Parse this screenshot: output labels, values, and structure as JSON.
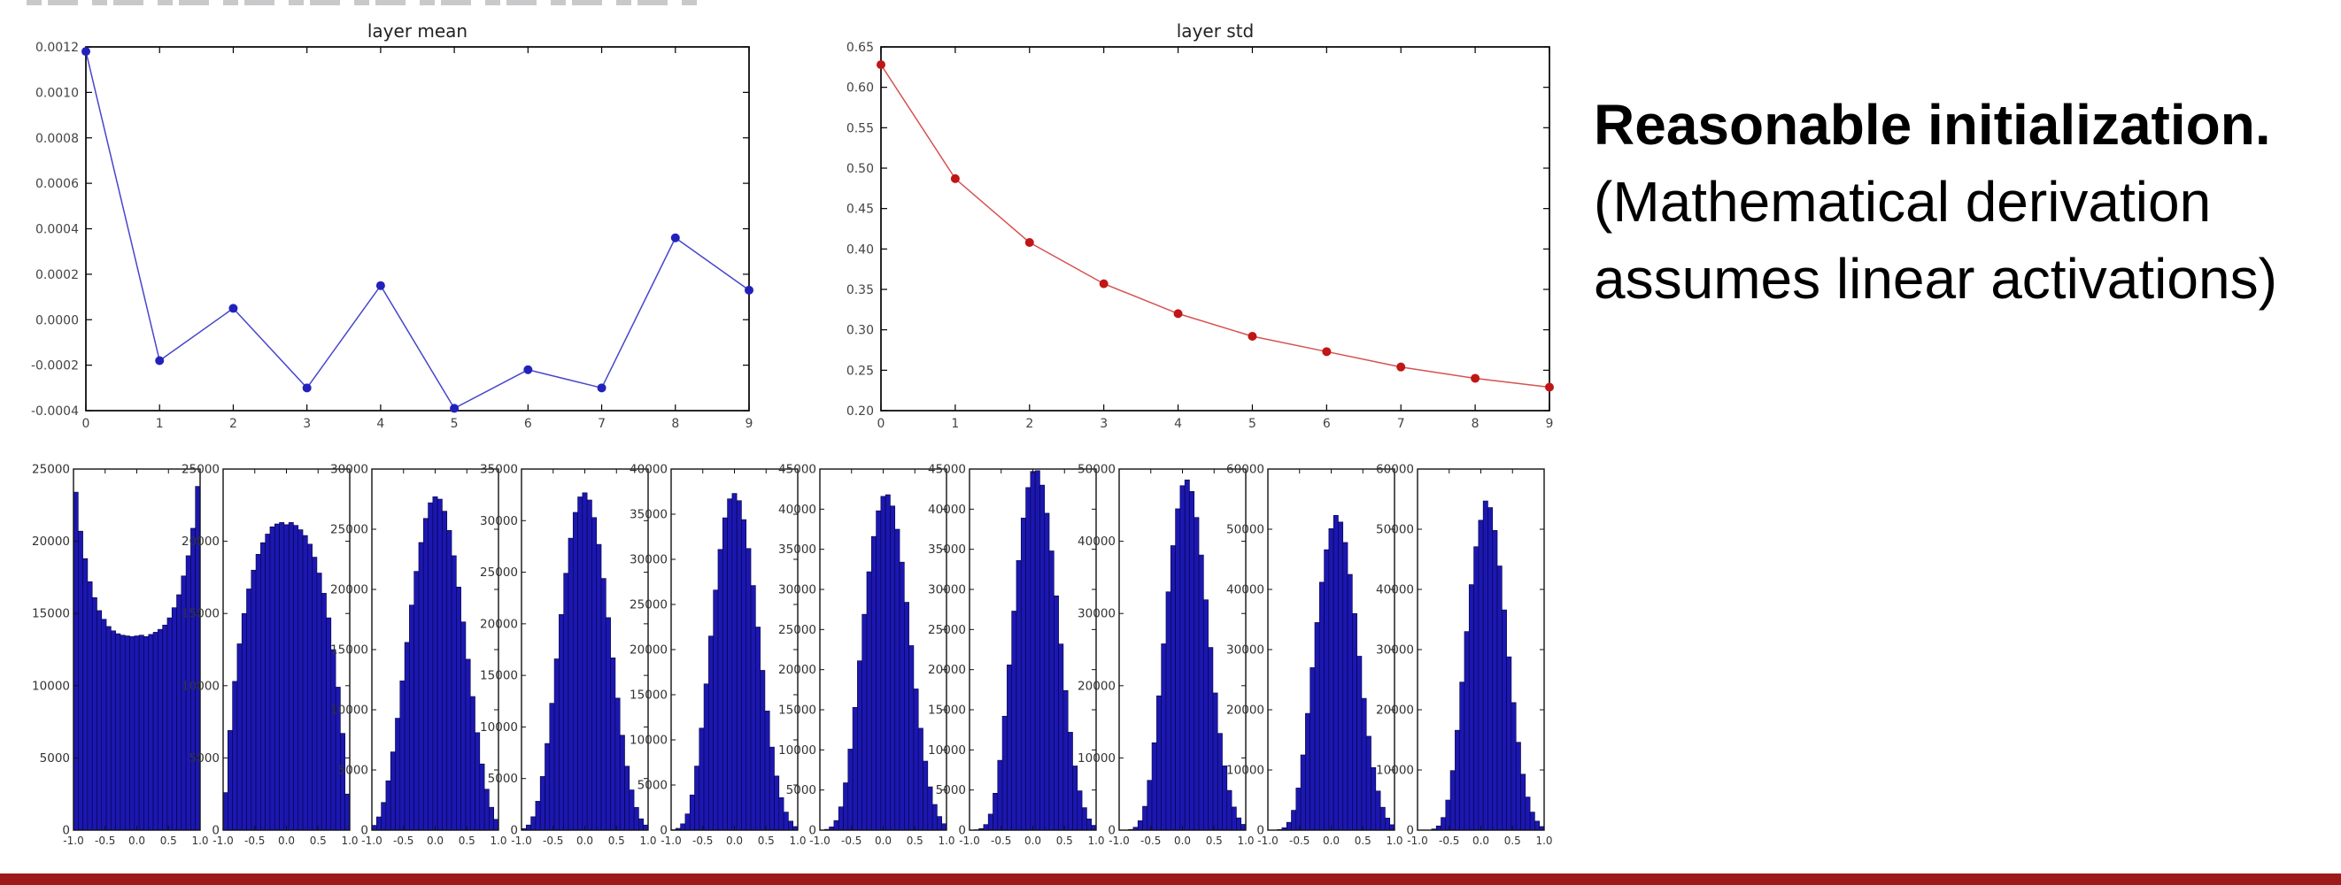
{
  "caption": {
    "line1": "Reasonable initialization.",
    "line2": "(Mathematical derivation",
    "line3": "assumes linear activations)"
  },
  "accent_bar_color": "#9e1a1a",
  "chart_data": [
    {
      "id": "layer-mean",
      "type": "line",
      "title": "layer mean",
      "x": [
        0,
        1,
        2,
        3,
        4,
        5,
        6,
        7,
        8,
        9
      ],
      "values": [
        0.00118,
        -0.00018,
        5e-05,
        -0.0003,
        0.00015,
        -0.00039,
        -0.00022,
        -0.0003,
        0.00036,
        0.00013
      ],
      "xlim": [
        0,
        9
      ],
      "ylim": [
        -0.0004,
        0.0012
      ],
      "xticks": [
        0,
        1,
        2,
        3,
        4,
        5,
        6,
        7,
        8,
        9
      ],
      "xtick_labels": [
        "0",
        "1",
        "2",
        "3",
        "4",
        "5",
        "6",
        "7",
        "8",
        "9"
      ],
      "yticks": [
        0.0012,
        0.001,
        0.0008,
        0.0006,
        0.0004,
        0.0002,
        0.0,
        -0.0002,
        -0.0004
      ],
      "ytick_labels": [
        "0.0012",
        "0.0010",
        "0.0008",
        "0.0006",
        "0.0004",
        "0.0002",
        "0.0000",
        "-0.0002",
        "-0.0004"
      ],
      "grid": false,
      "legend": null,
      "line_color": "#4646cc",
      "marker_color": "#2222bb"
    },
    {
      "id": "layer-std",
      "type": "line",
      "title": "layer std",
      "x": [
        0,
        1,
        2,
        3,
        4,
        5,
        6,
        7,
        8,
        9
      ],
      "values": [
        0.628,
        0.487,
        0.408,
        0.357,
        0.32,
        0.292,
        0.273,
        0.254,
        0.24,
        0.229
      ],
      "xlim": [
        0,
        9
      ],
      "ylim": [
        0.2,
        0.65
      ],
      "xticks": [
        0,
        1,
        2,
        3,
        4,
        5,
        6,
        7,
        8,
        9
      ],
      "xtick_labels": [
        "0",
        "1",
        "2",
        "3",
        "4",
        "5",
        "6",
        "7",
        "8",
        "9"
      ],
      "yticks": [
        0.65,
        0.6,
        0.55,
        0.5,
        0.45,
        0.4,
        0.35,
        0.3,
        0.25,
        0.2
      ],
      "ytick_labels": [
        "0.65",
        "0.60",
        "0.55",
        "0.50",
        "0.45",
        "0.40",
        "0.35",
        "0.30",
        "0.25",
        "0.20"
      ],
      "grid": false,
      "legend": null,
      "line_color": "#d65151",
      "marker_color": "#c01616"
    },
    {
      "id": "activation-histograms",
      "type": "bar",
      "note": "per-layer tanh activation distributions, layers 1-10",
      "xlim": [
        -1,
        1
      ],
      "xticks": [
        -1,
        -0.5,
        0,
        0.5,
        1
      ],
      "xtick_labels": [
        "-1.0",
        "-0.5",
        "0.0",
        "0.5",
        "1.0"
      ],
      "bar_color": "#1c17b0",
      "bar_edge_color": "#03033f",
      "panels": [
        {
          "layer": 1,
          "ymax": 25000,
          "ytick_step": 5000,
          "values": [
            23400,
            20700,
            18800,
            17200,
            16100,
            15200,
            14600,
            14100,
            13800,
            13600,
            13500,
            13450,
            13400,
            13450,
            13500,
            13400,
            13550,
            13700,
            13900,
            14200,
            14700,
            15400,
            16300,
            17600,
            19000,
            20900,
            23800
          ]
        },
        {
          "layer": 2,
          "ymax": 25000,
          "ytick_step": 5000,
          "values": [
            2600,
            6900,
            10300,
            12900,
            15000,
            16700,
            18000,
            19100,
            19900,
            20500,
            21000,
            21200,
            21300,
            21150,
            21300,
            21100,
            20800,
            20400,
            19800,
            18900,
            17800,
            16400,
            14700,
            12500,
            9900,
            6700,
            2500
          ]
        },
        {
          "layer": 3,
          "ymax": 30000,
          "ytick_step": 5000,
          "values": [
            400,
            1100,
            2300,
            4100,
            6500,
            9300,
            12400,
            15600,
            18700,
            21500,
            23900,
            25900,
            27200,
            27700,
            27500,
            26500,
            24900,
            22800,
            20200,
            17300,
            14200,
            11100,
            8100,
            5500,
            3400,
            1900,
            900
          ]
        },
        {
          "layer": 4,
          "ymax": 35000,
          "ytick_step": 5000,
          "values": [
            150,
            500,
            1300,
            2800,
            5200,
            8400,
            12300,
            16600,
            20900,
            24900,
            28300,
            30800,
            32300,
            32700,
            32000,
            30300,
            27700,
            24400,
            20600,
            16700,
            12800,
            9200,
            6200,
            3900,
            2200,
            1100,
            500
          ]
        },
        {
          "layer": 5,
          "ymax": 40000,
          "ytick_step": 5000,
          "values": [
            50,
            200,
            700,
            1800,
            3900,
            7100,
            11300,
            16200,
            21500,
            26600,
            31100,
            34600,
            36700,
            37300,
            36500,
            34400,
            31200,
            27100,
            22500,
            17700,
            13200,
            9200,
            6000,
            3600,
            2000,
            1000,
            400
          ]
        },
        {
          "layer": 6,
          "ymax": 45000,
          "ytick_step": 5000,
          "values": [
            0,
            100,
            400,
            1200,
            2900,
            5900,
            10100,
            15300,
            21100,
            26900,
            32200,
            36600,
            39800,
            41600,
            41800,
            40400,
            37500,
            33400,
            28400,
            23000,
            17600,
            12700,
            8600,
            5400,
            3200,
            1700,
            800
          ]
        },
        {
          "layer": 7,
          "ymax": 45000,
          "ytick_step": 5000,
          "values": [
            0,
            50,
            200,
            700,
            2000,
            4600,
            8700,
            14200,
            20600,
            27300,
            33600,
            38900,
            42700,
            44700,
            44800,
            43000,
            39500,
            34800,
            29200,
            23200,
            17400,
            12200,
            8000,
            4900,
            2800,
            1400,
            600
          ]
        },
        {
          "layer": 8,
          "ymax": 50000,
          "ytick_step": 10000,
          "values": [
            0,
            0,
            100,
            400,
            1300,
            3300,
            6900,
            12100,
            18600,
            25800,
            33000,
            39400,
            44500,
            47700,
            48500,
            46900,
            43300,
            38100,
            31900,
            25300,
            19000,
            13400,
            8900,
            5500,
            3200,
            1700,
            800
          ]
        },
        {
          "layer": 9,
          "ymax": 60000,
          "ytick_step": 10000,
          "values": [
            0,
            0,
            100,
            400,
            1300,
            3300,
            7000,
            12500,
            19400,
            27000,
            34500,
            41200,
            46600,
            50100,
            52300,
            51200,
            47800,
            42500,
            36000,
            28900,
            21900,
            15600,
            10400,
            6500,
            3800,
            2000,
            900
          ]
        },
        {
          "layer": 10,
          "ymax": 60000,
          "ytick_step": 10000,
          "values": [
            0,
            0,
            0,
            200,
            700,
            2100,
            5000,
            9900,
            16600,
            24600,
            33000,
            40800,
            47100,
            51500,
            54700,
            53600,
            49800,
            43900,
            36600,
            28800,
            21200,
            14600,
            9300,
            5500,
            3000,
            1500,
            600
          ]
        }
      ]
    }
  ]
}
